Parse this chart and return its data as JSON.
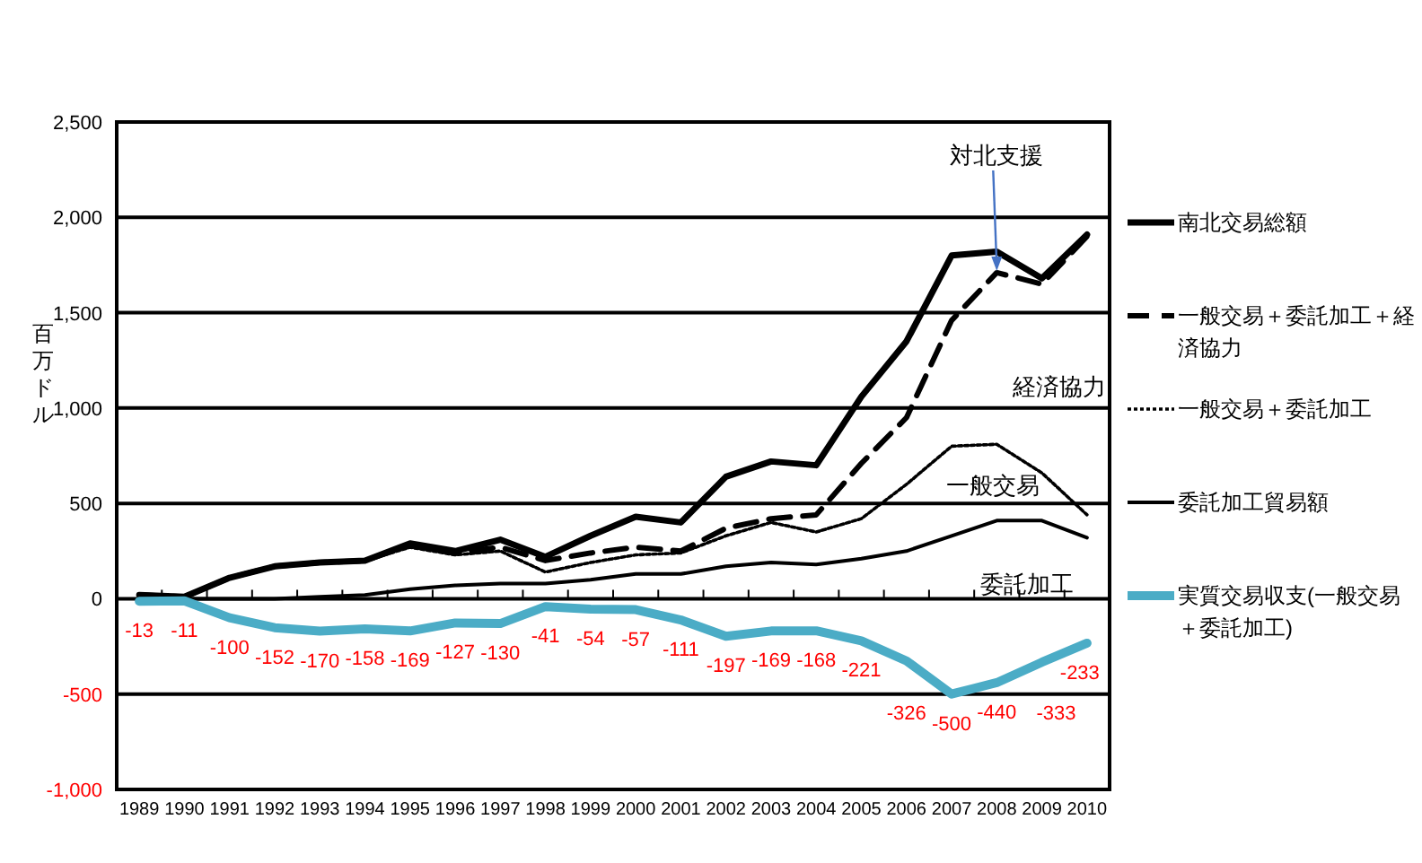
{
  "chart_data": {
    "type": "line",
    "ylabel": "百万ドル",
    "categories": [
      "1989",
      "1990",
      "1991",
      "1992",
      "1993",
      "1994",
      "1995",
      "1996",
      "1997",
      "1998",
      "1999",
      "2000",
      "2001",
      "2002",
      "2003",
      "2004",
      "2005",
      "2006",
      "2007",
      "2008",
      "2009",
      "2010"
    ],
    "ylim": [
      -1000,
      2500
    ],
    "yticks": [
      {
        "value": -1000,
        "label": "-1,000"
      },
      {
        "value": -500,
        "label": "-500"
      },
      0,
      {
        "value": 500,
        "label": "500"
      },
      {
        "value": 1000,
        "label": "1,000"
      },
      {
        "value": 1500,
        "label": "1,500"
      },
      {
        "value": 2000,
        "label": "2,000"
      },
      {
        "value": 2500,
        "label": "2,500"
      }
    ],
    "grid": "y",
    "legend": "right",
    "series": [
      {
        "name": "南北交易総額",
        "color": "#000000",
        "line_style": "solid",
        "values": [
          20,
          10,
          110,
          170,
          190,
          200,
          290,
          250,
          310,
          220,
          330,
          430,
          400,
          640,
          720,
          700,
          1060,
          1350,
          1800,
          1820,
          1680,
          1910
        ]
      },
      {
        "name": "一般交易＋委託加工＋経済協力",
        "color": "#000000",
        "line_style": "dashed",
        "values": [
          20,
          10,
          110,
          170,
          190,
          200,
          280,
          240,
          270,
          200,
          240,
          270,
          250,
          370,
          420,
          440,
          710,
          950,
          1460,
          1710,
          1650,
          1900
        ]
      },
      {
        "name": "一般交易＋委託加工",
        "color": "#000000",
        "line_style": "dotted",
        "values": [
          20,
          10,
          110,
          170,
          190,
          200,
          270,
          230,
          250,
          140,
          190,
          230,
          240,
          330,
          400,
          350,
          420,
          600,
          800,
          810,
          660,
          440
        ]
      },
      {
        "name": "委託加工貿易額",
        "color": "#000000",
        "line_style": "solid",
        "values": [
          0,
          0,
          0,
          0,
          10,
          20,
          50,
          70,
          80,
          80,
          100,
          130,
          130,
          170,
          190,
          180,
          210,
          250,
          330,
          410,
          410,
          320
        ]
      },
      {
        "name": "実質交易収支(一般交易＋委託加工)",
        "color": "#4bacc6",
        "line_style": "solid",
        "values": [
          -13,
          -11,
          -100,
          -152,
          -170,
          -158,
          -169,
          -127,
          -130,
          -41,
          -54,
          -57,
          -111,
          -197,
          -169,
          -168,
          -221,
          -326,
          -500,
          -440,
          -333,
          -233
        ],
        "value_labels": [
          "-13",
          "-11",
          "-100",
          "-152",
          "-170",
          "-158",
          "-169",
          "-127",
          "-130",
          "-41",
          "-54",
          "-57",
          "-111",
          "-197",
          "-169",
          "-168",
          "-221",
          "-326",
          "-500",
          "-440",
          "-333",
          "-233"
        ]
      }
    ],
    "annotations": [
      {
        "text": "対北支援",
        "x": "2008",
        "y": 1700
      },
      "経済協力",
      "一般交易",
      "委託加工"
    ]
  }
}
